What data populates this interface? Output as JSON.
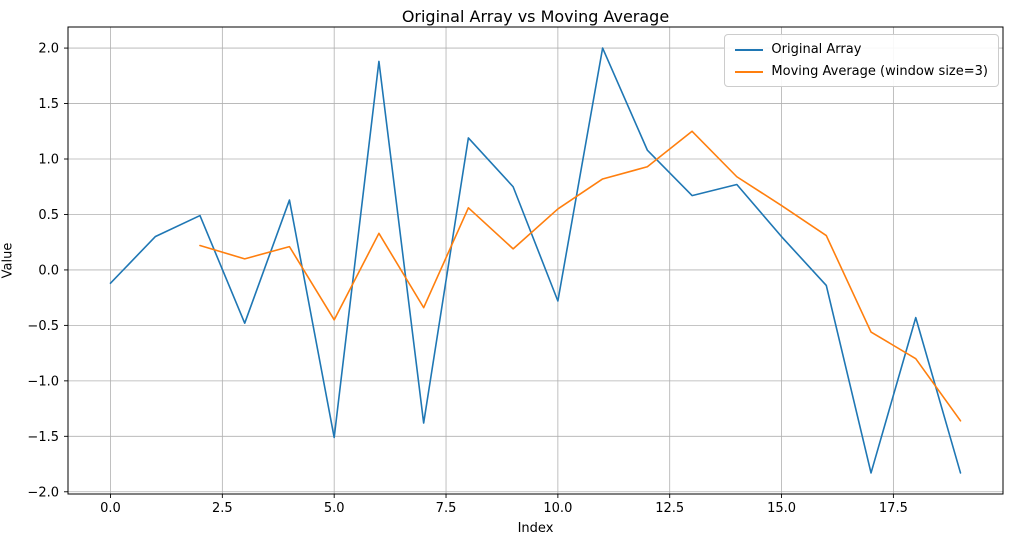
{
  "chart_data": {
    "type": "line",
    "title": "Original Array vs Moving Average",
    "xlabel": "Index",
    "ylabel": "Value",
    "xlim": [
      -0.95,
      19.95
    ],
    "ylim": [
      -2.02,
      2.19
    ],
    "x_ticks": [
      0.0,
      2.5,
      5.0,
      7.5,
      10.0,
      12.5,
      15.0,
      17.5
    ],
    "x_tick_labels": [
      "0.0",
      "2.5",
      "5.0",
      "7.5",
      "10.0",
      "12.5",
      "15.0",
      "17.5"
    ],
    "y_ticks": [
      -2.0,
      -1.5,
      -1.0,
      -0.5,
      0.0,
      0.5,
      1.0,
      1.5,
      2.0
    ],
    "y_tick_labels": [
      "−2.0",
      "−1.5",
      "−1.0",
      "−0.5",
      "0.0",
      "0.5",
      "1.0",
      "1.5",
      "2.0"
    ],
    "grid": true,
    "legend_position": "upper right",
    "series": [
      {
        "name": "Original Array",
        "color": "#1f77b4",
        "x": [
          0,
          1,
          2,
          3,
          4,
          5,
          6,
          7,
          8,
          9,
          10,
          11,
          12,
          13,
          14,
          15,
          16,
          17,
          18,
          19
        ],
        "values": [
          -0.12,
          0.3,
          0.49,
          -0.48,
          0.63,
          -1.51,
          1.88,
          -1.38,
          1.19,
          0.75,
          -0.28,
          2.0,
          1.08,
          0.67,
          0.77,
          0.3,
          -0.14,
          -1.83,
          -0.43,
          -1.83
        ]
      },
      {
        "name": "Moving Average (window size=3)",
        "color": "#ff7f0e",
        "x": [
          2,
          3,
          4,
          5,
          6,
          7,
          8,
          9,
          10,
          11,
          12,
          13,
          14,
          15,
          16,
          17,
          18,
          19
        ],
        "values": [
          0.22,
          0.1,
          0.21,
          -0.45,
          0.33,
          -0.34,
          0.56,
          0.19,
          0.55,
          0.82,
          0.93,
          1.25,
          0.84,
          0.58,
          0.31,
          -0.56,
          -0.8,
          -1.36
        ]
      }
    ]
  },
  "colors": {
    "background": "#ffffff",
    "grid": "#b0b0b0",
    "spine": "#000000",
    "tick_text": "#000000"
  }
}
